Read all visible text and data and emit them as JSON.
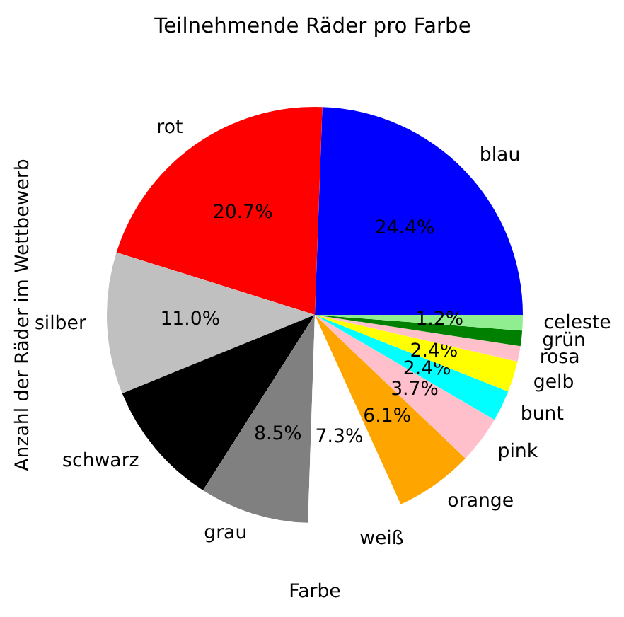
{
  "chart_data": {
    "type": "pie",
    "title": "Teilnehmende Räder pro Farbe",
    "xlabel": "Farbe",
    "ylabel": "Anzahl der Räder im Wettbewerb",
    "categories": [
      "blau",
      "rot",
      "silber",
      "schwarz",
      "grau",
      "weiß",
      "orange",
      "pink",
      "bunt",
      "gelb",
      "rosa",
      "grün",
      "celeste"
    ],
    "values": [
      24.4,
      20.7,
      11.0,
      9.8,
      8.5,
      7.3,
      6.1,
      3.7,
      2.4,
      2.4,
      1.2,
      1.2,
      1.2
    ],
    "colors": [
      "#0000ff",
      "#ff0000",
      "#c0c0c0",
      "#000000",
      "#808080",
      "#ffffff",
      "#ffa500",
      "#ffc0cb",
      "#00ffff",
      "#ffff00",
      "#ffc0cb",
      "#008000",
      "#90ee90"
    ],
    "value_labels": [
      "24.4%",
      "20.7%",
      "11.0%",
      null,
      "8.5%",
      "7.3%",
      "6.1%",
      "3.7%",
      "2.4%",
      "2.4%",
      null,
      null,
      "1.2%"
    ]
  }
}
